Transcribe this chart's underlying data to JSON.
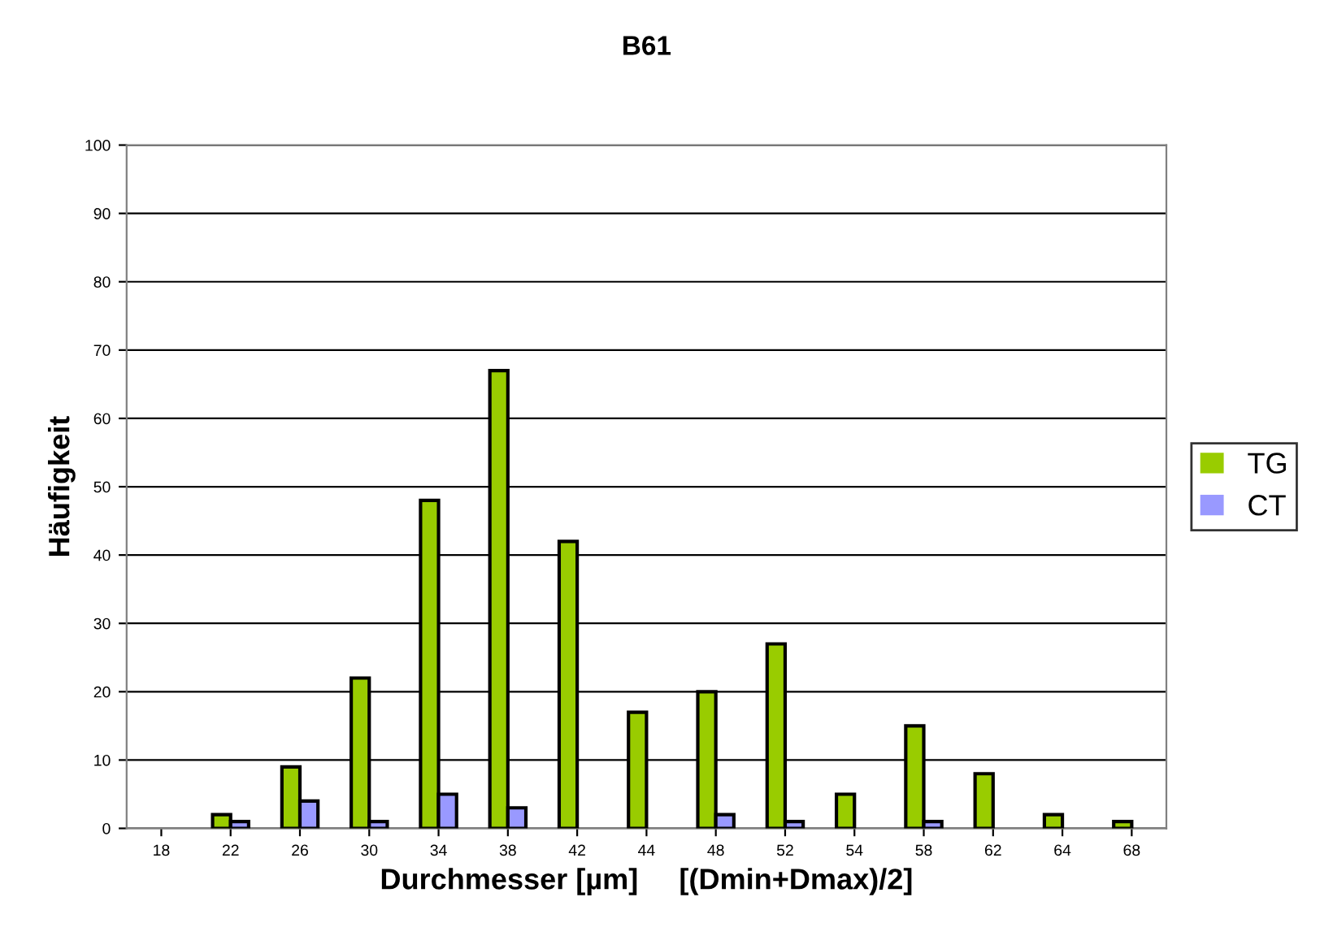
{
  "chart_data": {
    "type": "bar",
    "title": "B61",
    "xlabel": "Durchmesser [µm]     [(Dmin+Dmax)/2]",
    "ylabel": "Häufigkeit",
    "categories": [
      "18",
      "22",
      "26",
      "30",
      "34",
      "38",
      "42",
      "44",
      "48",
      "52",
      "54",
      "58",
      "62",
      "64",
      "68"
    ],
    "series": [
      {
        "name": "TG",
        "color": "#99cc00",
        "values": [
          0,
          2,
          9,
          22,
          48,
          67,
          42,
          17,
          20,
          27,
          5,
          15,
          8,
          2,
          1
        ]
      },
      {
        "name": "CT",
        "color": "#9999ff",
        "values": [
          0,
          1,
          4,
          1,
          5,
          3,
          0,
          0,
          2,
          1,
          0,
          1,
          0,
          0,
          0
        ]
      }
    ],
    "ylim": [
      0,
      100
    ],
    "yticks": [
      0,
      10,
      20,
      30,
      40,
      50,
      60,
      70,
      80,
      90,
      100
    ],
    "grid": "y",
    "legend": "right"
  }
}
